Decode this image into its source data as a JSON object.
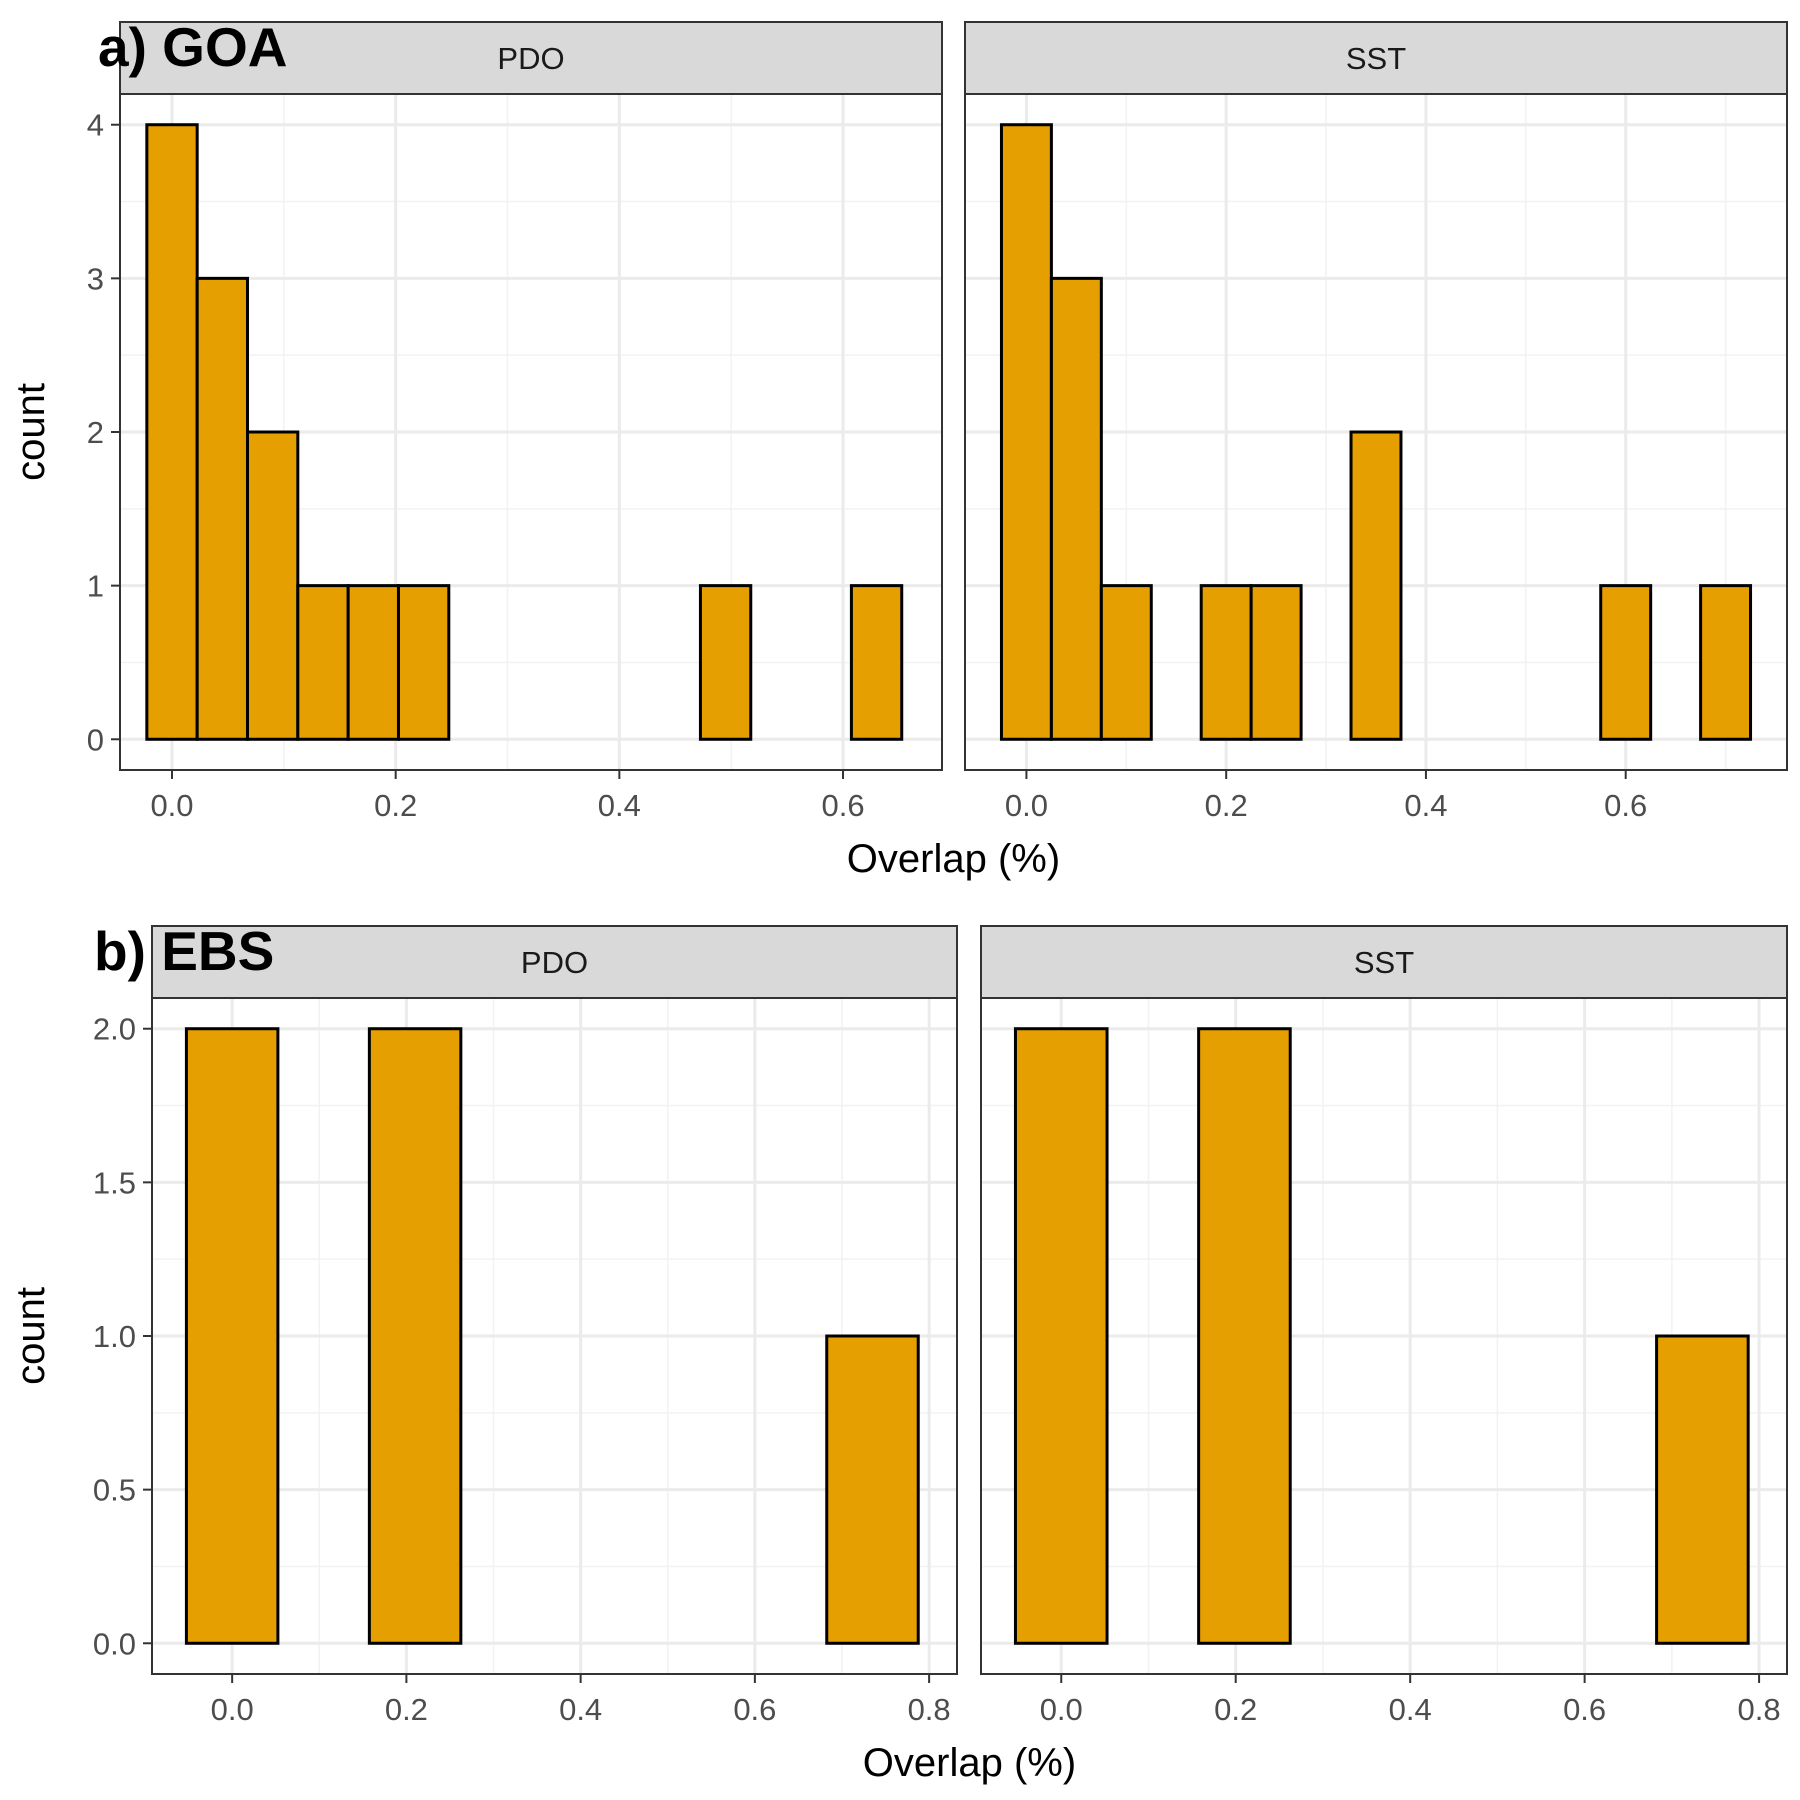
{
  "figure": {
    "bar_fill": "#E69F00",
    "bar_stroke": "#000000",
    "strip_fill": "#D9D9D9"
  },
  "chart_data": [
    {
      "type": "bar",
      "panel_tag": "a) GOA",
      "ylabel": "count",
      "xlabel": "Overlap (%)",
      "ylim": [
        0,
        4
      ],
      "yticks": [
        0,
        1,
        2,
        3,
        4
      ],
      "ytick_labels": [
        "0",
        "1",
        "2",
        "3",
        "4"
      ],
      "xticks": [
        0,
        0.2,
        0.4,
        0.6
      ],
      "xtick_labels": [
        "0.0",
        "0.2",
        "0.4",
        "0.6"
      ],
      "grid": true,
      "facets": [
        {
          "strip": "PDO",
          "xlim": [
            -0.0465,
            0.6885
          ],
          "bin_edges": [
            -0.0225,
            0.0225,
            0.0675,
            0.1125,
            0.1575,
            0.2025,
            0.2475,
            0.2925,
            0.3375,
            0.3825,
            0.4275,
            0.4725,
            0.5175,
            0.5625,
            0.6075,
            0.6525
          ],
          "counts": [
            4,
            3,
            2,
            1,
            1,
            1,
            0,
            0,
            0,
            0,
            0,
            1,
            0,
            0,
            1
          ]
        },
        {
          "strip": "SST",
          "xlim": [
            -0.0615,
            0.7615
          ],
          "bin_edges": [
            -0.025,
            0.025,
            0.075,
            0.125,
            0.175,
            0.225,
            0.275,
            0.325,
            0.375,
            0.425,
            0.475,
            0.525,
            0.575,
            0.625,
            0.675,
            0.725
          ],
          "counts": [
            4,
            3,
            1,
            0,
            1,
            1,
            0,
            2,
            0,
            0,
            0,
            0,
            1,
            0,
            1
          ]
        }
      ]
    },
    {
      "type": "bar",
      "panel_tag": "b) EBS",
      "ylabel": "count",
      "xlabel": "Overlap (%)",
      "ylim": [
        0,
        2
      ],
      "yticks": [
        0,
        0.5,
        1,
        1.5,
        2
      ],
      "ytick_labels": [
        "0.0",
        "0.5",
        "1.0",
        "1.5",
        "2.0"
      ],
      "xticks": [
        0,
        0.2,
        0.4,
        0.6,
        0.8
      ],
      "xtick_labels": [
        "0.0",
        "0.2",
        "0.4",
        "0.6",
        "0.8"
      ],
      "grid": true,
      "facets": [
        {
          "strip": "PDO",
          "xlim": [
            -0.092,
            0.832
          ],
          "bin_edges": [
            -0.0525,
            0.0525,
            0.1575,
            0.2625,
            0.3675,
            0.4725,
            0.5775,
            0.6825,
            0.7875
          ],
          "counts": [
            2,
            0,
            2,
            0,
            0,
            0,
            0,
            1
          ]
        },
        {
          "strip": "SST",
          "xlim": [
            -0.092,
            0.832
          ],
          "bin_edges": [
            -0.0525,
            0.0525,
            0.1575,
            0.2625,
            0.3675,
            0.4725,
            0.5775,
            0.6825,
            0.7875
          ],
          "counts": [
            2,
            0,
            2,
            0,
            0,
            0,
            0,
            1
          ]
        }
      ]
    }
  ]
}
